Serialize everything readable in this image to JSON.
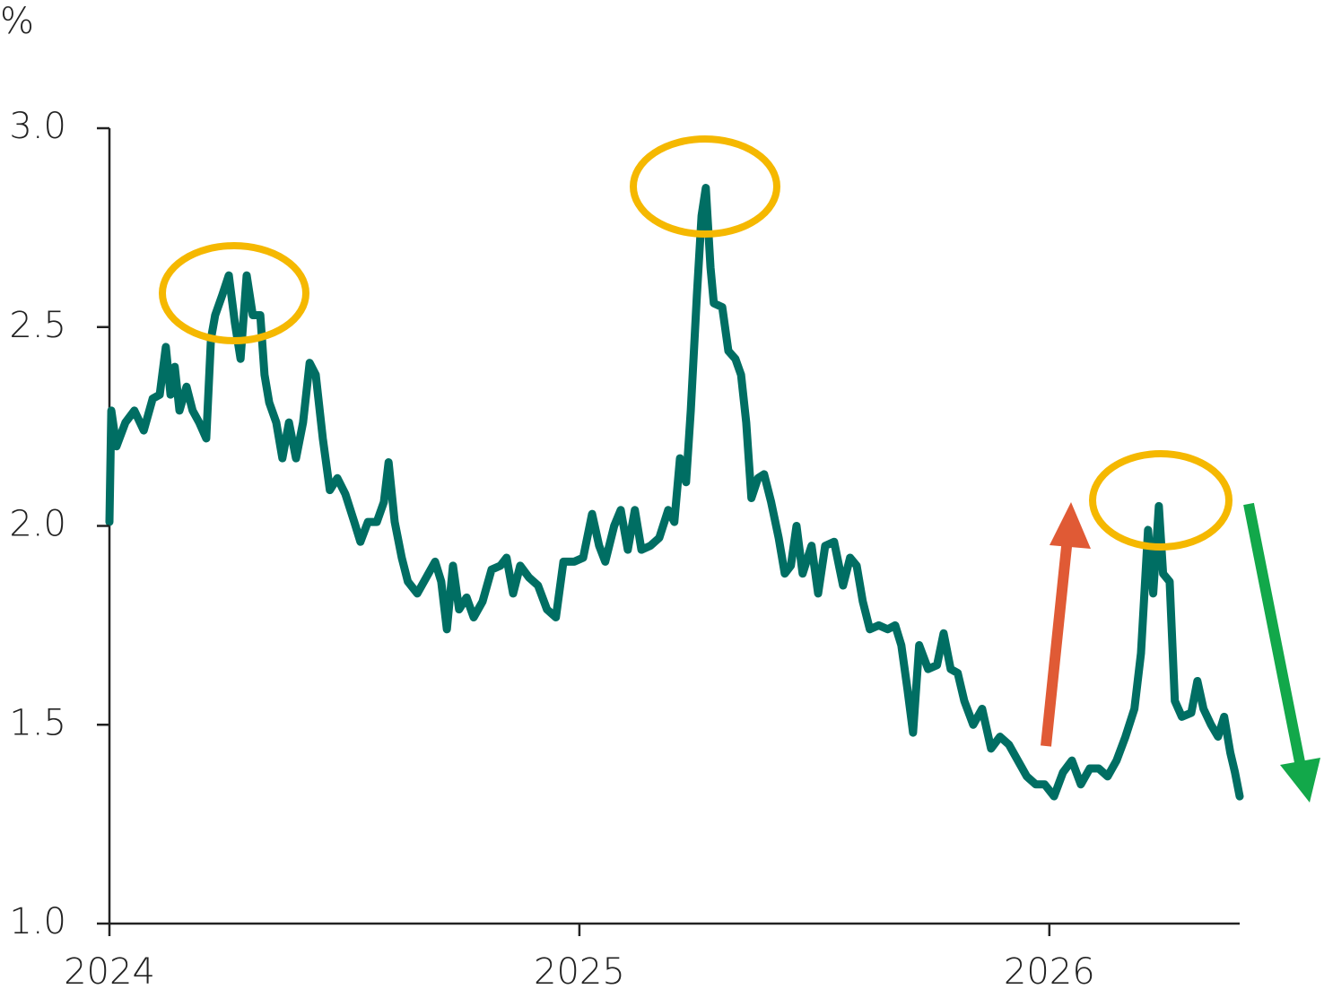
{
  "chart_data": {
    "type": "line",
    "y_label": "%",
    "x": [
      2024.0,
      2024.004,
      2024.015,
      2024.034,
      2024.053,
      2024.073,
      2024.092,
      2024.107,
      2024.12,
      2024.13,
      2024.139,
      2024.149,
      2024.164,
      2024.177,
      2024.191,
      2024.206,
      2024.216,
      2024.225,
      2024.24,
      2024.254,
      2024.267,
      2024.279,
      2024.292,
      2024.305,
      2024.321,
      2024.33,
      2024.34,
      2024.355,
      2024.368,
      2024.382,
      2024.397,
      2024.412,
      2024.426,
      2024.439,
      2024.454,
      2024.469,
      2024.485,
      2024.502,
      2024.521,
      2024.534,
      2024.55,
      2024.569,
      2024.584,
      2024.594,
      2024.607,
      2024.622,
      2024.635,
      2024.655,
      2024.674,
      2024.693,
      2024.706,
      2024.718,
      2024.731,
      2024.744,
      2024.76,
      2024.775,
      2024.794,
      2024.813,
      2024.832,
      2024.845,
      2024.859,
      2024.874,
      2024.893,
      2024.912,
      2024.931,
      2024.95,
      2024.966,
      2024.989,
      2025.008,
      2025.027,
      2025.042,
      2025.055,
      2025.074,
      2025.088,
      2025.103,
      2025.118,
      2025.132,
      2025.151,
      2025.17,
      2025.189,
      2025.202,
      2025.214,
      2025.227,
      2025.237,
      2025.25,
      2025.26,
      2025.269,
      2025.279,
      2025.286,
      2025.304,
      2025.317,
      2025.332,
      2025.344,
      2025.355,
      2025.366,
      2025.38,
      2025.393,
      2025.408,
      2025.424,
      2025.437,
      2025.45,
      2025.462,
      2025.475,
      2025.494,
      2025.508,
      2025.523,
      2025.542,
      2025.561,
      2025.576,
      2025.59,
      2025.603,
      2025.618,
      2025.637,
      2025.656,
      2025.672,
      2025.685,
      2025.698,
      2025.71,
      2025.723,
      2025.742,
      2025.761,
      2025.775,
      2025.79,
      2025.805,
      2025.819,
      2025.838,
      2025.857,
      2025.876,
      2025.895,
      2025.914,
      2025.933,
      2025.952,
      2025.971,
      2025.99,
      2026.01,
      2026.029,
      2026.048,
      2026.067,
      2026.086,
      2026.105,
      2026.124,
      2026.143,
      2026.162,
      2026.181,
      2026.195,
      2026.21,
      2026.221,
      2026.233,
      2026.242,
      2026.256,
      2026.267,
      2026.282,
      2026.302,
      2026.315,
      2026.328,
      2026.344,
      2026.359,
      2026.372,
      2026.385,
      2026.395,
      2026.405
    ],
    "series": [
      {
        "color": "#006e63",
        "values": [
          2.01,
          2.29,
          2.2,
          2.26,
          2.29,
          2.24,
          2.32,
          2.33,
          2.45,
          2.33,
          2.4,
          2.29,
          2.35,
          2.29,
          2.26,
          2.22,
          2.47,
          2.53,
          2.58,
          2.63,
          2.51,
          2.42,
          2.63,
          2.53,
          2.53,
          2.38,
          2.31,
          2.26,
          2.17,
          2.26,
          2.17,
          2.26,
          2.41,
          2.38,
          2.22,
          2.09,
          2.12,
          2.08,
          2.01,
          1.96,
          2.01,
          2.01,
          2.06,
          2.16,
          2.01,
          1.92,
          1.86,
          1.83,
          1.87,
          1.91,
          1.86,
          1.74,
          1.9,
          1.79,
          1.82,
          1.77,
          1.81,
          1.89,
          1.9,
          1.92,
          1.83,
          1.9,
          1.87,
          1.85,
          1.79,
          1.77,
          1.91,
          1.91,
          1.92,
          2.03,
          1.95,
          1.91,
          2.0,
          2.04,
          1.94,
          2.04,
          1.94,
          1.95,
          1.97,
          2.04,
          2.01,
          2.17,
          2.11,
          2.29,
          2.58,
          2.78,
          2.85,
          2.65,
          2.56,
          2.55,
          2.44,
          2.42,
          2.38,
          2.26,
          2.07,
          2.12,
          2.13,
          2.06,
          1.97,
          1.88,
          1.9,
          2.0,
          1.88,
          1.95,
          1.83,
          1.95,
          1.96,
          1.85,
          1.92,
          1.9,
          1.81,
          1.74,
          1.75,
          1.74,
          1.75,
          1.7,
          1.59,
          1.48,
          1.7,
          1.64,
          1.65,
          1.73,
          1.64,
          1.63,
          1.56,
          1.5,
          1.54,
          1.44,
          1.47,
          1.45,
          1.41,
          1.37,
          1.35,
          1.35,
          1.32,
          1.38,
          1.41,
          1.35,
          1.39,
          1.39,
          1.37,
          1.41,
          1.47,
          1.54,
          1.68,
          1.99,
          1.83,
          2.05,
          1.88,
          1.86,
          1.56,
          1.52,
          1.53,
          1.61,
          1.54,
          1.5,
          1.47,
          1.52,
          1.43,
          1.38,
          1.32
        ]
      }
    ],
    "xlim": [
      2024,
      2026.405
    ],
    "xticks": [
      2024,
      2025,
      2026
    ],
    "ylim": [
      1,
      3
    ],
    "yticks": [
      {
        "value": 1,
        "label": "1.0"
      },
      1.5,
      {
        "value": 2,
        "label": "2.0"
      },
      2.5,
      {
        "value": 3,
        "label": "3.0"
      }
    ]
  }
}
